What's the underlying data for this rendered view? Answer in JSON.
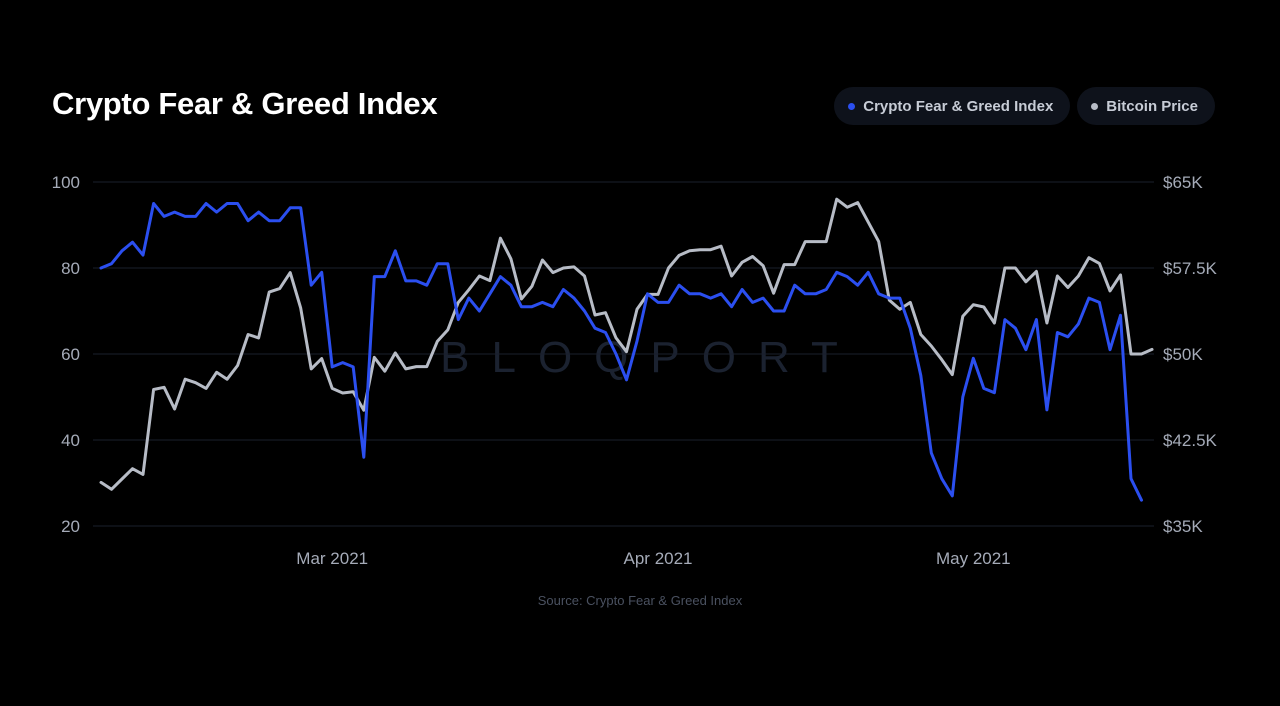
{
  "page": {
    "title": "Crypto Fear & Greed Index",
    "watermark": "BLOQPORT",
    "source": "Source: Crypto Fear & Greed Index"
  },
  "legend": [
    {
      "label": "Crypto Fear & Greed Index",
      "color": "#2b4ff0"
    },
    {
      "label": "Bitcoin Price",
      "color": "#b7bcc6"
    }
  ],
  "chart_data": {
    "type": "line",
    "title": "Crypto Fear & Greed Index",
    "x_axis": {
      "type": "date",
      "range": [
        "2021-02-07",
        "2021-05-18"
      ],
      "tick_labels": [
        "Mar 2021",
        "Apr 2021",
        "May 2021"
      ],
      "tick_dates": [
        "2021-03-01",
        "2021-04-01",
        "2021-05-01"
      ]
    },
    "y_left": {
      "range": [
        20,
        100
      ],
      "ticks": [
        20,
        40,
        60,
        80,
        100
      ],
      "tick_labels": [
        "20",
        "40",
        "60",
        "80",
        "100"
      ]
    },
    "y_right": {
      "range": [
        35000,
        65000
      ],
      "ticks": [
        35000,
        42500,
        50000,
        57500,
        65000
      ],
      "tick_labels": [
        "$35K",
        "$42.5K",
        "$50K",
        "$57.5K",
        "$65K"
      ]
    },
    "grid": true,
    "legend_position": "top-right",
    "series": [
      {
        "name": "Crypto Fear & Greed Index",
        "axis": "left",
        "color": "#2b4ff0",
        "start_date": "2021-02-07",
        "values": [
          80,
          81,
          84,
          86,
          83,
          95,
          92,
          93,
          92,
          92,
          95,
          93,
          95,
          95,
          91,
          93,
          91,
          91,
          94,
          94,
          76,
          79,
          57,
          58,
          57,
          36,
          78,
          78,
          84,
          77,
          77,
          76,
          81,
          81,
          68,
          73,
          70,
          74,
          78,
          76,
          71,
          71,
          72,
          71,
          75,
          73,
          70,
          66,
          65,
          60,
          54,
          63,
          74,
          72,
          72,
          76,
          74,
          74,
          73,
          74,
          71,
          75,
          72,
          73,
          70,
          70,
          76,
          74,
          74,
          75,
          79,
          78,
          76,
          79,
          74,
          73,
          73,
          66,
          55,
          37,
          31,
          27,
          50,
          59,
          52,
          51,
          68,
          66,
          61,
          68,
          47,
          65,
          64,
          67,
          73,
          72,
          61,
          69,
          31,
          26
        ]
      },
      {
        "name": "Bitcoin Price",
        "axis": "right",
        "color": "#b7bcc6",
        "start_date": "2021-02-07",
        "values": [
          38800,
          38200,
          39100,
          40000,
          39500,
          46900,
          47100,
          45200,
          47800,
          47500,
          47000,
          48400,
          47800,
          49000,
          51700,
          51400,
          55400,
          55700,
          57100,
          54000,
          48700,
          49600,
          47000,
          46600,
          46700,
          45100,
          49700,
          48500,
          50100,
          48700,
          48900,
          48900,
          51100,
          52100,
          54500,
          55600,
          56800,
          56400,
          60100,
          58300,
          54800,
          55900,
          58200,
          57100,
          57500,
          57600,
          56800,
          53400,
          53600,
          51400,
          50200,
          53900,
          55200,
          55200,
          57500,
          58600,
          59000,
          59100,
          59100,
          59400,
          56800,
          58000,
          58500,
          57700,
          55300,
          57800,
          57800,
          59800,
          59800,
          59800,
          63500,
          62800,
          63200,
          61500,
          59800,
          54700,
          53900,
          54500,
          51700,
          50700,
          49500,
          48200,
          53300,
          54300,
          54100,
          52700,
          57500,
          57500,
          56300,
          57200,
          52700,
          56800,
          55800,
          56800,
          58400,
          57900,
          55500,
          56900,
          50000,
          50000,
          50400
        ]
      }
    ]
  }
}
